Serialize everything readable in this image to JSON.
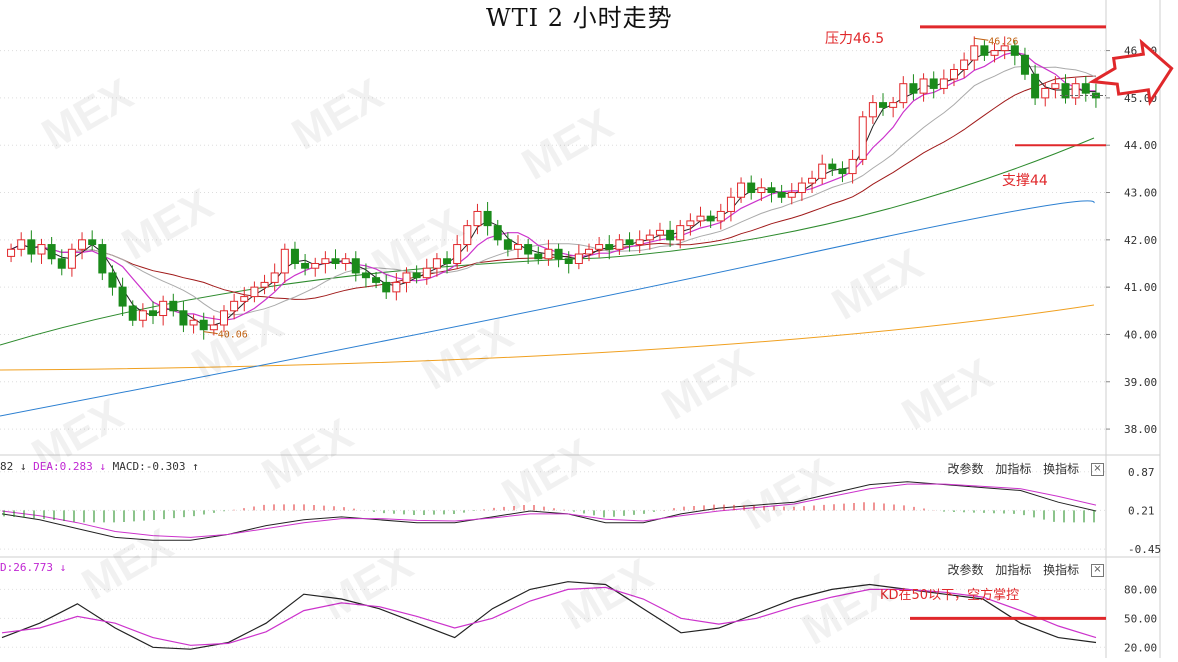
{
  "title": "WTI 2 小时走势",
  "annotations": {
    "resistance": "压力46.5",
    "support": "支撑44",
    "high_label": "46.26",
    "low_label": "40.06",
    "kd_note": "KD在50以下，空方掌控"
  },
  "macd_header": {
    "dif_text": "82",
    "dif_arrow": "↓",
    "dea_text": "DEA:0.283",
    "dea_arrow": "↓",
    "macd_text": "MACD:-0.303",
    "macd_arrow": "↑"
  },
  "kd_header": {
    "text": "D:26.773",
    "arrow": "↓"
  },
  "controls": {
    "change_params": "改参数",
    "add_indicator": "加指标",
    "switch_indicator": "换指标",
    "close": "×"
  },
  "watermark": "MEX",
  "colors": {
    "up": "#e0282b",
    "down": "#1a8a1a",
    "ma_black": "#222222",
    "ma_magenta": "#cc33cc",
    "ma_gray": "#aaaaaa",
    "ma_darkred": "#a01a1a",
    "ma_green": "#2e8b2e",
    "ma_blue": "#2b7fd1",
    "ma_orange": "#f0a020",
    "kd_k": "#222222",
    "kd_d": "#cc33cc",
    "annotation": "#e0282b"
  },
  "chart_data": [
    {
      "type": "candlestick",
      "title": "WTI 2 小时走势",
      "y_ticks": [
        "46.00",
        "45.00",
        "44.00",
        "43.00",
        "42.00",
        "41.00",
        "40.00",
        "39.00",
        "38.00"
      ],
      "ylim": [
        37.6,
        46.9
      ],
      "close": [
        41.8,
        42.0,
        41.7,
        41.9,
        41.6,
        41.4,
        41.8,
        42.0,
        41.9,
        41.3,
        41.0,
        40.6,
        40.3,
        40.5,
        40.4,
        40.7,
        40.5,
        40.2,
        40.3,
        40.1,
        40.2,
        40.5,
        40.7,
        40.8,
        41.0,
        41.1,
        41.3,
        41.8,
        41.5,
        41.4,
        41.5,
        41.6,
        41.5,
        41.6,
        41.3,
        41.2,
        41.1,
        40.9,
        41.1,
        41.3,
        41.2,
        41.4,
        41.6,
        41.5,
        41.9,
        42.3,
        42.6,
        42.3,
        42.0,
        41.8,
        41.9,
        41.7,
        41.6,
        41.8,
        41.6,
        41.5,
        41.7,
        41.8,
        41.9,
        41.8,
        42.0,
        41.9,
        42.0,
        42.1,
        42.2,
        42.0,
        42.3,
        42.4,
        42.5,
        42.4,
        42.6,
        42.9,
        43.2,
        43.0,
        43.1,
        43.0,
        42.9,
        43.0,
        43.2,
        43.3,
        43.6,
        43.5,
        43.4,
        43.7,
        44.6,
        44.9,
        44.8,
        44.9,
        45.3,
        45.1,
        45.4,
        45.2,
        45.4,
        45.6,
        45.8,
        46.1,
        45.9,
        46.0,
        46.1,
        45.9,
        45.5,
        45.0,
        45.2,
        45.3,
        45.0,
        45.3,
        45.1,
        45.0
      ],
      "low_marker": 40.06,
      "high_marker": 46.26,
      "resistance": 46.5,
      "support": 44,
      "moving_averages": [
        "MA5",
        "MA10",
        "MA20",
        "MA60",
        "MA120",
        "MA250",
        "MA500"
      ]
    },
    {
      "type": "line",
      "name": "MACD",
      "y_ticks": [
        "0.87",
        "0.21",
        "-0.45"
      ],
      "ylim": [
        -0.5,
        0.9
      ],
      "series": [
        {
          "values": [
            0.15,
            0.05,
            -0.1,
            -0.25,
            -0.3,
            -0.3,
            -0.2,
            -0.05,
            0.05,
            0.1,
            0.05,
            0.0,
            0.0,
            0.1,
            0.2,
            0.15,
            0.0,
            0.0,
            0.15,
            0.25,
            0.3,
            0.35,
            0.5,
            0.65,
            0.7,
            0.65,
            0.6,
            0.55,
            0.35,
            0.2
          ]
        },
        {
          "values": [
            0.2,
            0.12,
            0.0,
            -0.15,
            -0.22,
            -0.25,
            -0.2,
            -0.1,
            0.0,
            0.07,
            0.07,
            0.04,
            0.03,
            0.08,
            0.15,
            0.15,
            0.06,
            0.03,
            0.12,
            0.2,
            0.26,
            0.32,
            0.45,
            0.58,
            0.66,
            0.66,
            0.62,
            0.58,
            0.45,
            0.3
          ]
        }
      ]
    },
    {
      "type": "line",
      "name": "KD",
      "y_ticks": [
        "80.00",
        "50.00",
        "20.00"
      ],
      "ylim": [
        12,
        98
      ],
      "series": [
        {
          "values": [
            30,
            45,
            65,
            40,
            20,
            18,
            25,
            45,
            75,
            70,
            60,
            45,
            30,
            60,
            80,
            88,
            85,
            60,
            35,
            40,
            55,
            70,
            80,
            85,
            80,
            75,
            70,
            45,
            30,
            25
          ]
        },
        {
          "values": [
            35,
            40,
            52,
            45,
            30,
            22,
            24,
            36,
            58,
            66,
            62,
            52,
            40,
            50,
            68,
            80,
            82,
            70,
            50,
            44,
            50,
            62,
            72,
            80,
            80,
            77,
            72,
            58,
            42,
            30
          ]
        }
      ],
      "threshold": 50
    }
  ]
}
